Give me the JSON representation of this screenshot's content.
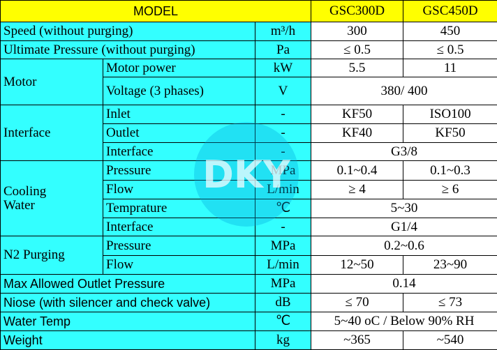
{
  "table": {
    "header": [
      "MODEL",
      "GSC300D",
      "GSC450D"
    ],
    "rows": [
      [
        "Speed (without purging)",
        "m³/h",
        "300",
        "450"
      ],
      [
        "Ultimate Pressure (without purging)",
        "Pa",
        "≤ 0.5",
        "≤ 0.5"
      ],
      [
        "Motor",
        "Motor power",
        "kW",
        "5.5",
        "11"
      ],
      [
        "Voltage (3 phases)",
        "V",
        "380/ 400"
      ],
      [
        "Interface",
        "Inlet",
        "-",
        "KF50",
        "ISO100"
      ],
      [
        "Outlet",
        "-",
        "KF40",
        "KF50"
      ],
      [
        "Interface",
        "-",
        "G3/8"
      ],
      [
        "Cooling Water",
        "Pressure",
        "MPa",
        "0.1~0.4",
        "0.1~0.3"
      ],
      [
        "Flow",
        "L/min",
        "≥ 4",
        "≥ 6"
      ],
      [
        "Temprature",
        "℃",
        "5~30"
      ],
      [
        "Interface",
        "-",
        "G1/4"
      ],
      [
        "N2 Purging",
        "Pressure",
        "MPa",
        "0.2~0.6"
      ],
      [
        "Flow",
        "L/min",
        "12~50",
        "23~90"
      ],
      [
        "Max Allowed Outlet Pressure",
        "MPa",
        "0.14"
      ],
      [
        "Niose (with silencer and check valve)",
        "dB",
        "≤ 70",
        "≤ 73"
      ],
      [
        "Water Temp",
        "℃",
        "5~40 oC / Below 90% RH"
      ],
      [
        "Weight",
        "kg",
        "~365",
        "~540"
      ]
    ],
    "watermark": "DKY"
  }
}
